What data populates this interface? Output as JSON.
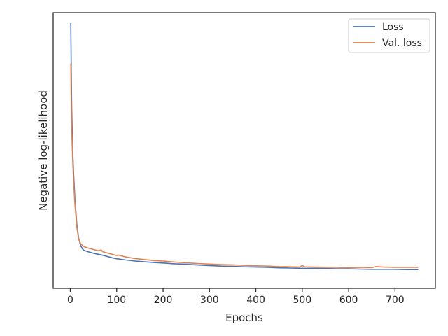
{
  "chart_data": {
    "type": "line",
    "title": "",
    "xlabel": "Epochs",
    "ylabel": "Negative log-likelihood",
    "xlim": [
      -37,
      787
    ],
    "x_ticks": [
      0,
      100,
      200,
      300,
      400,
      500,
      600,
      700
    ],
    "ylim": [
      0,
      1
    ],
    "y_ticks_shown": false,
    "grid": false,
    "legend": "upper right",
    "series": [
      {
        "name": "Loss",
        "color": "#4c72b0",
        "x": [
          1,
          2,
          3,
          5,
          7,
          10,
          14,
          18,
          22,
          26,
          30,
          40,
          50,
          60,
          70,
          80,
          90,
          100,
          120,
          140,
          160,
          180,
          200,
          225,
          250,
          275,
          300,
          325,
          350,
          375,
          400,
          425,
          450,
          475,
          500,
          525,
          550,
          575,
          600,
          625,
          650,
          675,
          700,
          725,
          750
        ],
        "y": [
          1.0,
          0.82,
          0.66,
          0.5,
          0.4,
          0.3,
          0.2,
          0.145,
          0.115,
          0.102,
          0.095,
          0.089,
          0.084,
          0.08,
          0.076,
          0.071,
          0.066,
          0.062,
          0.057,
          0.053,
          0.05,
          0.047,
          0.045,
          0.042,
          0.04,
          0.037,
          0.035,
          0.033,
          0.032,
          0.03,
          0.029,
          0.028,
          0.026,
          0.025,
          0.024,
          0.024,
          0.023,
          0.022,
          0.022,
          0.021,
          0.02,
          0.02,
          0.02,
          0.019,
          0.019
        ]
      },
      {
        "name": "Val. loss",
        "color": "#dd8452",
        "x": [
          1,
          2,
          3,
          5,
          7,
          10,
          14,
          18,
          22,
          26,
          30,
          40,
          50,
          60,
          67,
          70,
          80,
          90,
          100,
          103,
          120,
          140,
          160,
          180,
          200,
          225,
          250,
          275,
          300,
          325,
          350,
          375,
          400,
          425,
          450,
          475,
          495,
          500,
          505,
          525,
          550,
          575,
          600,
          625,
          650,
          660,
          675,
          700,
          725,
          750
        ],
        "y": [
          0.84,
          0.7,
          0.58,
          0.46,
          0.37,
          0.28,
          0.19,
          0.14,
          0.123,
          0.115,
          0.11,
          0.104,
          0.099,
          0.094,
          0.097,
          0.09,
          0.085,
          0.08,
          0.075,
          0.077,
          0.069,
          0.063,
          0.059,
          0.055,
          0.053,
          0.049,
          0.046,
          0.043,
          0.041,
          0.039,
          0.038,
          0.036,
          0.034,
          0.033,
          0.031,
          0.03,
          0.029,
          0.036,
          0.03,
          0.029,
          0.028,
          0.028,
          0.027,
          0.028,
          0.027,
          0.031,
          0.029,
          0.028,
          0.028,
          0.028
        ]
      }
    ]
  }
}
